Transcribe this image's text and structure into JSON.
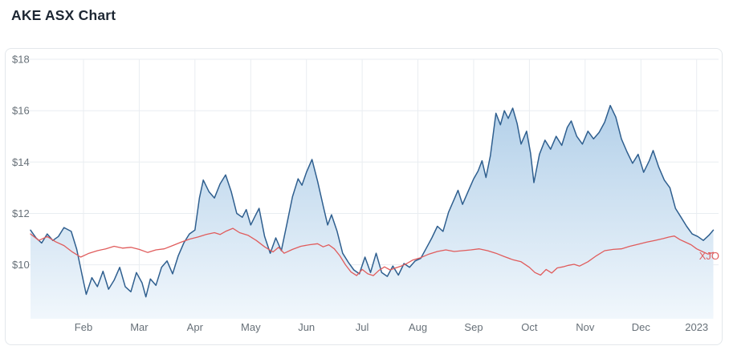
{
  "page": {
    "title": "AKE ASX Chart"
  },
  "chart_data": {
    "type": "line",
    "title": "AKE ASX Chart",
    "grid": true,
    "legend": "inline-series-label",
    "x_axis": {
      "unit": "months from Jan 2022",
      "range": [
        0.05,
        12.35
      ],
      "tick_positions": [
        1,
        2,
        3,
        4,
        5,
        6,
        7,
        8,
        9,
        10,
        11,
        12
      ],
      "tick_labels": [
        "Feb",
        "Mar",
        "Apr",
        "May",
        "Jun",
        "Jul",
        "Aug",
        "Sep",
        "Oct",
        "Nov",
        "Dec",
        "2023"
      ]
    },
    "y_axis": {
      "unit": "AUD",
      "range": [
        7.9,
        18.0
      ],
      "tick_values": [
        18,
        16,
        14,
        12,
        10
      ],
      "tick_labels": [
        "$18",
        "$16",
        "$14",
        "$12",
        "$10"
      ]
    },
    "colors": {
      "ake_line": "#2f5f8f",
      "area_top": "#b3d0e9",
      "area_bottom": "#f1f7fc",
      "xjo_line": "#e05c5c",
      "grid": "#e9edf1",
      "tick_text": "#677078",
      "title_text": "#1d2733",
      "card_border": "#e3e7eb"
    },
    "series": [
      {
        "name": "AKE",
        "area": true,
        "width": 1.5,
        "color": "#2f5f8f",
        "inline_label": null,
        "points": [
          [
            0.05,
            11.35
          ],
          [
            0.15,
            11.05
          ],
          [
            0.25,
            10.85
          ],
          [
            0.35,
            11.2
          ],
          [
            0.45,
            10.95
          ],
          [
            0.55,
            11.1
          ],
          [
            0.65,
            11.45
          ],
          [
            0.78,
            11.3
          ],
          [
            0.88,
            10.6
          ],
          [
            0.98,
            9.55
          ],
          [
            1.05,
            8.85
          ],
          [
            1.15,
            9.5
          ],
          [
            1.25,
            9.15
          ],
          [
            1.35,
            9.75
          ],
          [
            1.45,
            9.05
          ],
          [
            1.55,
            9.4
          ],
          [
            1.65,
            9.9
          ],
          [
            1.75,
            9.15
          ],
          [
            1.85,
            8.95
          ],
          [
            1.95,
            9.7
          ],
          [
            2.05,
            9.3
          ],
          [
            2.12,
            8.75
          ],
          [
            2.2,
            9.45
          ],
          [
            2.3,
            9.2
          ],
          [
            2.4,
            9.9
          ],
          [
            2.5,
            10.15
          ],
          [
            2.6,
            9.65
          ],
          [
            2.7,
            10.35
          ],
          [
            2.8,
            10.85
          ],
          [
            2.9,
            11.2
          ],
          [
            3.0,
            11.35
          ],
          [
            3.08,
            12.6
          ],
          [
            3.15,
            13.3
          ],
          [
            3.25,
            12.85
          ],
          [
            3.35,
            12.6
          ],
          [
            3.45,
            13.15
          ],
          [
            3.55,
            13.5
          ],
          [
            3.65,
            12.85
          ],
          [
            3.75,
            12.0
          ],
          [
            3.85,
            11.85
          ],
          [
            3.92,
            12.15
          ],
          [
            4.0,
            11.55
          ],
          [
            4.08,
            11.9
          ],
          [
            4.15,
            12.2
          ],
          [
            4.25,
            11.1
          ],
          [
            4.35,
            10.45
          ],
          [
            4.45,
            11.05
          ],
          [
            4.55,
            10.55
          ],
          [
            4.65,
            11.6
          ],
          [
            4.75,
            12.65
          ],
          [
            4.85,
            13.35
          ],
          [
            4.92,
            13.1
          ],
          [
            5.0,
            13.6
          ],
          [
            5.1,
            14.1
          ],
          [
            5.2,
            13.25
          ],
          [
            5.3,
            12.3
          ],
          [
            5.38,
            11.55
          ],
          [
            5.45,
            11.95
          ],
          [
            5.55,
            11.3
          ],
          [
            5.65,
            10.45
          ],
          [
            5.75,
            10.1
          ],
          [
            5.85,
            9.8
          ],
          [
            5.95,
            9.65
          ],
          [
            6.05,
            10.3
          ],
          [
            6.15,
            9.7
          ],
          [
            6.25,
            10.45
          ],
          [
            6.35,
            9.7
          ],
          [
            6.45,
            9.55
          ],
          [
            6.55,
            9.95
          ],
          [
            6.65,
            9.6
          ],
          [
            6.75,
            10.05
          ],
          [
            6.85,
            9.9
          ],
          [
            6.95,
            10.15
          ],
          [
            7.05,
            10.25
          ],
          [
            7.15,
            10.65
          ],
          [
            7.25,
            11.05
          ],
          [
            7.35,
            11.5
          ],
          [
            7.45,
            11.3
          ],
          [
            7.55,
            12.05
          ],
          [
            7.65,
            12.55
          ],
          [
            7.72,
            12.9
          ],
          [
            7.8,
            12.35
          ],
          [
            7.9,
            12.85
          ],
          [
            8.0,
            13.35
          ],
          [
            8.08,
            13.65
          ],
          [
            8.15,
            14.05
          ],
          [
            8.22,
            13.4
          ],
          [
            8.3,
            14.25
          ],
          [
            8.4,
            15.9
          ],
          [
            8.48,
            15.45
          ],
          [
            8.55,
            16.0
          ],
          [
            8.62,
            15.7
          ],
          [
            8.7,
            16.1
          ],
          [
            8.78,
            15.5
          ],
          [
            8.85,
            14.7
          ],
          [
            8.95,
            15.2
          ],
          [
            9.02,
            14.35
          ],
          [
            9.08,
            13.2
          ],
          [
            9.18,
            14.3
          ],
          [
            9.28,
            14.85
          ],
          [
            9.38,
            14.5
          ],
          [
            9.48,
            15.0
          ],
          [
            9.58,
            14.65
          ],
          [
            9.68,
            15.35
          ],
          [
            9.75,
            15.6
          ],
          [
            9.85,
            15.0
          ],
          [
            9.95,
            14.7
          ],
          [
            10.05,
            15.2
          ],
          [
            10.15,
            14.9
          ],
          [
            10.25,
            15.15
          ],
          [
            10.35,
            15.55
          ],
          [
            10.45,
            16.2
          ],
          [
            10.55,
            15.75
          ],
          [
            10.65,
            14.9
          ],
          [
            10.75,
            14.4
          ],
          [
            10.85,
            13.95
          ],
          [
            10.95,
            14.3
          ],
          [
            11.05,
            13.6
          ],
          [
            11.15,
            14.05
          ],
          [
            11.22,
            14.45
          ],
          [
            11.32,
            13.8
          ],
          [
            11.42,
            13.3
          ],
          [
            11.52,
            13.0
          ],
          [
            11.62,
            12.2
          ],
          [
            11.72,
            11.85
          ],
          [
            11.82,
            11.5
          ],
          [
            11.92,
            11.2
          ],
          [
            12.02,
            11.1
          ],
          [
            12.12,
            10.95
          ],
          [
            12.22,
            11.15
          ],
          [
            12.3,
            11.35
          ]
        ]
      },
      {
        "name": "XJO",
        "area": false,
        "width": 1.3,
        "color": "#e05c5c",
        "inline_label": "XJO",
        "points": [
          [
            0.05,
            11.2
          ],
          [
            0.2,
            10.95
          ],
          [
            0.35,
            11.1
          ],
          [
            0.5,
            10.9
          ],
          [
            0.65,
            10.75
          ],
          [
            0.8,
            10.5
          ],
          [
            0.95,
            10.3
          ],
          [
            1.1,
            10.45
          ],
          [
            1.25,
            10.55
          ],
          [
            1.4,
            10.62
          ],
          [
            1.55,
            10.72
          ],
          [
            1.7,
            10.65
          ],
          [
            1.85,
            10.68
          ],
          [
            2.0,
            10.6
          ],
          [
            2.15,
            10.48
          ],
          [
            2.3,
            10.58
          ],
          [
            2.45,
            10.62
          ],
          [
            2.6,
            10.75
          ],
          [
            2.75,
            10.88
          ],
          [
            2.9,
            11.0
          ],
          [
            3.05,
            11.08
          ],
          [
            3.2,
            11.18
          ],
          [
            3.35,
            11.25
          ],
          [
            3.45,
            11.18
          ],
          [
            3.55,
            11.3
          ],
          [
            3.68,
            11.42
          ],
          [
            3.8,
            11.25
          ],
          [
            3.95,
            11.15
          ],
          [
            4.1,
            10.95
          ],
          [
            4.25,
            10.7
          ],
          [
            4.4,
            10.5
          ],
          [
            4.5,
            10.68
          ],
          [
            4.6,
            10.45
          ],
          [
            4.75,
            10.6
          ],
          [
            4.9,
            10.72
          ],
          [
            5.05,
            10.78
          ],
          [
            5.2,
            10.82
          ],
          [
            5.3,
            10.7
          ],
          [
            5.4,
            10.78
          ],
          [
            5.5,
            10.62
          ],
          [
            5.6,
            10.35
          ],
          [
            5.7,
            10.0
          ],
          [
            5.8,
            9.72
          ],
          [
            5.9,
            9.58
          ],
          [
            6.0,
            9.82
          ],
          [
            6.1,
            9.65
          ],
          [
            6.2,
            9.58
          ],
          [
            6.3,
            9.78
          ],
          [
            6.4,
            9.92
          ],
          [
            6.5,
            9.8
          ],
          [
            6.6,
            9.88
          ],
          [
            6.7,
            9.95
          ],
          [
            6.8,
            10.05
          ],
          [
            6.9,
            10.18
          ],
          [
            7.05,
            10.28
          ],
          [
            7.2,
            10.42
          ],
          [
            7.35,
            10.52
          ],
          [
            7.5,
            10.58
          ],
          [
            7.65,
            10.52
          ],
          [
            7.8,
            10.55
          ],
          [
            7.95,
            10.58
          ],
          [
            8.1,
            10.62
          ],
          [
            8.25,
            10.55
          ],
          [
            8.4,
            10.45
          ],
          [
            8.55,
            10.32
          ],
          [
            8.7,
            10.2
          ],
          [
            8.85,
            10.12
          ],
          [
            9.0,
            9.9
          ],
          [
            9.1,
            9.7
          ],
          [
            9.2,
            9.6
          ],
          [
            9.3,
            9.82
          ],
          [
            9.4,
            9.68
          ],
          [
            9.5,
            9.88
          ],
          [
            9.6,
            9.92
          ],
          [
            9.7,
            9.98
          ],
          [
            9.8,
            10.02
          ],
          [
            9.9,
            9.95
          ],
          [
            10.05,
            10.12
          ],
          [
            10.2,
            10.35
          ],
          [
            10.35,
            10.55
          ],
          [
            10.5,
            10.6
          ],
          [
            10.65,
            10.62
          ],
          [
            10.8,
            10.72
          ],
          [
            10.95,
            10.8
          ],
          [
            11.1,
            10.88
          ],
          [
            11.25,
            10.95
          ],
          [
            11.4,
            11.02
          ],
          [
            11.5,
            11.08
          ],
          [
            11.6,
            11.12
          ],
          [
            11.7,
            10.98
          ],
          [
            11.8,
            10.88
          ],
          [
            11.9,
            10.78
          ],
          [
            12.0,
            10.62
          ],
          [
            12.1,
            10.52
          ],
          [
            12.2,
            10.42
          ],
          [
            12.3,
            10.48
          ]
        ]
      }
    ]
  }
}
